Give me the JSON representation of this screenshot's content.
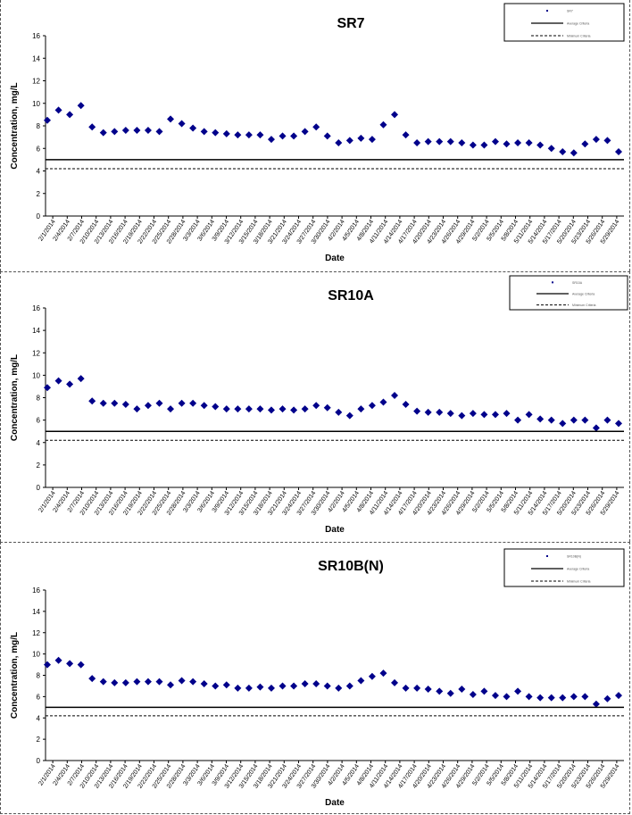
{
  "colors": {
    "point": "#00008B",
    "line": "#000000"
  },
  "chart_data": [
    {
      "type": "scatter",
      "title": "SR7",
      "xlabel": "Date",
      "ylabel": "Concentration, mg/L",
      "ylim": [
        0,
        16
      ],
      "yticks": [
        "0",
        "2",
        "4",
        "6",
        "8",
        "10",
        "12",
        "14",
        "16"
      ],
      "grid": false,
      "legend_position": "top-right",
      "xtick_labels": [
        "2/1/2014",
        "2/4/2014",
        "2/7/2014",
        "2/10/2014",
        "2/13/2014",
        "2/16/2014",
        "2/19/2014",
        "2/22/2014",
        "2/25/2014",
        "2/28/2014",
        "3/3/2014",
        "3/6/2014",
        "3/9/2014",
        "3/12/2014",
        "3/15/2014",
        "3/18/2014",
        "3/21/2014",
        "3/24/2014",
        "3/27/2014",
        "3/30/2014",
        "4/2/2014",
        "4/5/2014",
        "4/8/2014",
        "4/11/2014",
        "4/14/2014",
        "4/17/2014",
        "4/20/2014",
        "4/23/2014",
        "4/26/2014",
        "4/29/2014",
        "5/2/2014",
        "5/5/2014",
        "5/8/2014",
        "5/11/2014",
        "5/14/2014",
        "5/17/2014",
        "5/20/2014",
        "5/23/2014",
        "5/26/2014",
        "5/29/2014"
      ],
      "series": [
        {
          "marker": "diamond",
          "y": [
            8.5,
            9.4,
            9.0,
            9.8,
            7.9,
            7.4,
            7.5,
            7.6,
            7.6,
            7.6,
            7.5,
            8.6,
            8.2,
            7.8,
            7.5,
            7.4,
            7.3,
            7.2,
            7.2,
            7.2,
            6.8,
            7.1,
            7.1,
            7.5,
            7.9,
            7.1,
            6.5,
            6.7,
            6.9,
            6.8,
            8.1,
            9.0,
            7.2,
            6.5,
            6.6,
            6.6,
            6.6,
            6.5,
            6.3,
            6.3,
            6.6,
            6.4,
            6.5,
            6.5,
            6.3,
            6.0,
            5.7,
            5.6,
            6.4,
            6.8,
            6.7,
            5.7
          ]
        },
        {
          "line": "solid",
          "value": 5.0
        },
        {
          "line": "dashed",
          "value": 4.2
        }
      ],
      "legend": [
        {
          "marker": "dot",
          "label": "SR7"
        },
        {
          "marker": "solid",
          "label": "Average Criteria"
        },
        {
          "marker": "dashed",
          "label": "Minimum Criteria"
        }
      ]
    },
    {
      "type": "scatter",
      "title": "SR10A",
      "xlabel": "Date",
      "ylabel": "Concentration, mg/L",
      "ylim": [
        0,
        16
      ],
      "yticks": [
        "0",
        "2",
        "4",
        "6",
        "8",
        "10",
        "12",
        "14",
        "16"
      ],
      "grid": false,
      "legend_position": "top-right",
      "xtick_labels": [
        "2/1/2014",
        "2/4/2014",
        "2/7/2014",
        "2/10/2014",
        "2/13/2014",
        "2/16/2014",
        "2/19/2014",
        "2/22/2014",
        "2/25/2014",
        "2/28/2014",
        "3/3/2014",
        "3/6/2014",
        "3/9/2014",
        "3/12/2014",
        "3/15/2014",
        "3/18/2014",
        "3/21/2014",
        "3/24/2014",
        "3/27/2014",
        "3/30/2014",
        "4/2/2014",
        "4/5/2014",
        "4/8/2014",
        "4/11/2014",
        "4/14/2014",
        "4/17/2014",
        "4/20/2014",
        "4/23/2014",
        "4/26/2014",
        "4/29/2014",
        "5/2/2014",
        "5/5/2014",
        "5/8/2014",
        "5/11/2014",
        "5/14/2014",
        "5/17/2014",
        "5/20/2014",
        "5/23/2014",
        "5/26/2014",
        "5/29/2014"
      ],
      "series": [
        {
          "marker": "diamond",
          "y": [
            8.9,
            9.5,
            9.2,
            9.7,
            7.7,
            7.5,
            7.5,
            7.4,
            7.0,
            7.3,
            7.5,
            7.0,
            7.5,
            7.5,
            7.3,
            7.2,
            7.0,
            7.0,
            7.0,
            7.0,
            6.9,
            7.0,
            6.9,
            7.0,
            7.3,
            7.1,
            6.7,
            6.4,
            7.0,
            7.3,
            7.6,
            8.2,
            7.4,
            6.8,
            6.7,
            6.7,
            6.6,
            6.4,
            6.6,
            6.5,
            6.5,
            6.6,
            6.0,
            6.5,
            6.1,
            6.0,
            5.7,
            6.0,
            6.0,
            5.3,
            6.0,
            5.7
          ]
        },
        {
          "line": "solid",
          "value": 5.0
        },
        {
          "line": "dashed",
          "value": 4.2
        }
      ],
      "legend": [
        {
          "marker": "dot",
          "label": "SR10A"
        },
        {
          "marker": "solid",
          "label": "Average Criteria"
        },
        {
          "marker": "dashed",
          "label": "Minimum Criteria"
        }
      ]
    },
    {
      "type": "scatter",
      "title": "SR10B(N)",
      "xlabel": "Date",
      "ylabel": "Concentration, mg/L",
      "ylim": [
        0,
        16
      ],
      "yticks": [
        "0",
        "2",
        "4",
        "6",
        "8",
        "10",
        "12",
        "14",
        "16"
      ],
      "grid": false,
      "legend_position": "top-right",
      "xtick_labels": [
        "2/1/2014",
        "2/4/2014",
        "2/7/2014",
        "2/10/2014",
        "2/13/2014",
        "2/16/2014",
        "2/19/2014",
        "2/22/2014",
        "2/25/2014",
        "2/28/2014",
        "3/3/2014",
        "3/6/2014",
        "3/9/2014",
        "3/12/2014",
        "3/15/2014",
        "3/18/2014",
        "3/21/2014",
        "3/24/2014",
        "3/27/2014",
        "3/30/2014",
        "4/2/2014",
        "4/5/2014",
        "4/8/2014",
        "4/11/2014",
        "4/14/2014",
        "4/17/2014",
        "4/20/2014",
        "4/23/2014",
        "4/26/2014",
        "4/29/2014",
        "5/2/2014",
        "5/5/2014",
        "5/8/2014",
        "5/11/2014",
        "5/14/2014",
        "5/17/2014",
        "5/20/2014",
        "5/23/2014",
        "5/26/2014",
        "5/29/2014"
      ],
      "series": [
        {
          "marker": "diamond",
          "y": [
            9.0,
            9.4,
            9.1,
            9.0,
            7.7,
            7.4,
            7.3,
            7.3,
            7.4,
            7.4,
            7.4,
            7.1,
            7.5,
            7.4,
            7.2,
            7.0,
            7.1,
            6.8,
            6.8,
            6.9,
            6.8,
            7.0,
            7.0,
            7.2,
            7.2,
            7.0,
            6.8,
            7.0,
            7.5,
            7.9,
            8.2,
            7.3,
            6.8,
            6.8,
            6.7,
            6.5,
            6.3,
            6.7,
            6.2,
            6.5,
            6.1,
            6.0,
            6.5,
            6.0,
            5.9,
            5.9,
            5.9,
            6.0,
            6.0,
            5.3,
            5.8,
            6.1
          ]
        },
        {
          "line": "solid",
          "value": 5.0
        },
        {
          "line": "dashed",
          "value": 4.2
        }
      ],
      "legend": [
        {
          "marker": "dot",
          "label": "SR10B(N)"
        },
        {
          "marker": "solid",
          "label": "Average Criteria"
        },
        {
          "marker": "dashed",
          "label": "Minimum Criteria"
        }
      ]
    }
  ]
}
